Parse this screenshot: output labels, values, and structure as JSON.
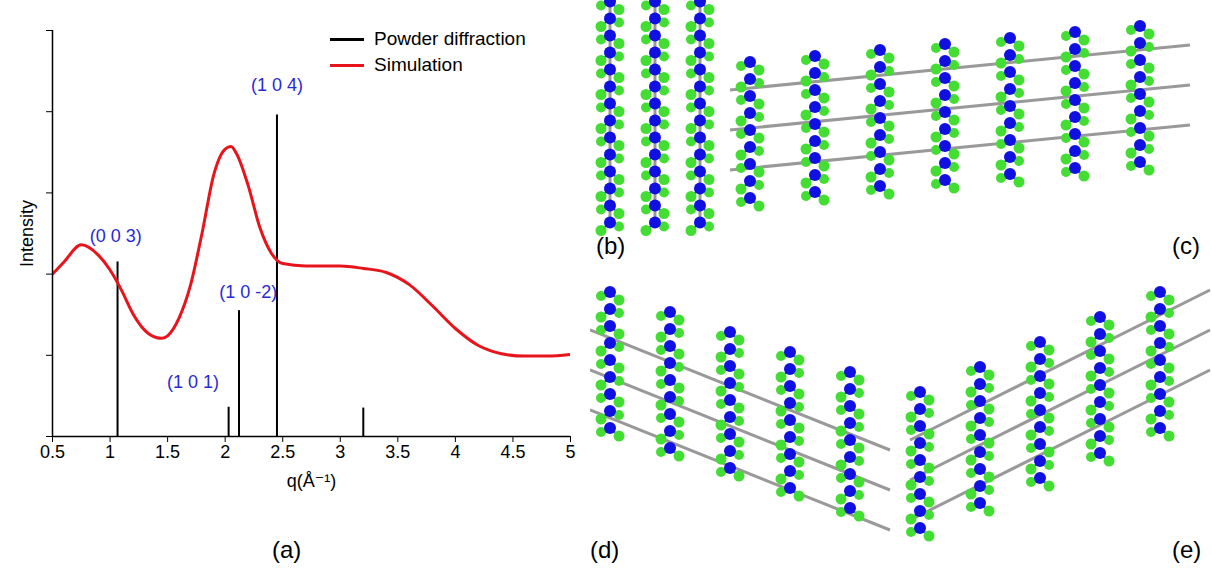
{
  "chart_data": {
    "type": "line",
    "x_label": "q(Å⁻¹)",
    "y_label": "Intensity",
    "xlim": [
      0.5,
      5
    ],
    "xticks": [
      0.5,
      1,
      1.5,
      2,
      2.5,
      3,
      3.5,
      4,
      4.5,
      5
    ],
    "ylim": [
      0,
      5
    ],
    "yticks": [
      0,
      1,
      2,
      3,
      4,
      5
    ],
    "tick_labels": "x",
    "grid": false,
    "legend": "top-right",
    "series": [
      {
        "name": "Powder diffraction",
        "color": "#000000",
        "type": "stem",
        "x": [
          1.065,
          2.03,
          2.12,
          2.45,
          3.2
        ],
        "values": [
          2.15,
          0.36,
          1.55,
          3.96,
          0.35
        ]
      },
      {
        "name": "Simulation",
        "color": "#e8141b",
        "type": "line",
        "x": [
          0.5,
          0.6,
          0.75,
          0.9,
          1.0,
          1.1,
          1.2,
          1.3,
          1.4,
          1.45,
          1.5,
          1.6,
          1.7,
          1.8,
          1.9,
          2.0,
          2.05,
          2.1,
          2.2,
          2.3,
          2.4,
          2.5,
          2.7,
          3.0,
          3.2,
          3.4,
          3.6,
          3.8,
          4.0,
          4.2,
          4.4,
          4.6,
          4.8,
          5.0
        ],
        "values": [
          2.0,
          2.15,
          2.36,
          2.23,
          2.05,
          1.8,
          1.51,
          1.31,
          1.22,
          1.21,
          1.24,
          1.46,
          1.87,
          2.51,
          3.22,
          3.54,
          3.57,
          3.48,
          3.09,
          2.58,
          2.26,
          2.13,
          2.1,
          2.1,
          2.07,
          2.02,
          1.87,
          1.61,
          1.33,
          1.12,
          1.02,
          0.99,
          0.99,
          1.01
        ]
      }
    ],
    "annotations": [
      {
        "text": "(0 0 3)",
        "x": 1.05,
        "y": 2.47,
        "color": "#2a2ad4"
      },
      {
        "text": "(1 0 -2)",
        "x": 2.2,
        "y": 1.78,
        "color": "#2a2ad4"
      },
      {
        "text": "(1 0 1)",
        "x": 1.72,
        "y": 0.67,
        "color": "#2a2ad4"
      },
      {
        "text": "(1 0 4)",
        "x": 2.45,
        "y": 4.33,
        "color": "#2a2ad4"
      }
    ]
  },
  "panels": [
    {
      "label": "(a)"
    },
    {
      "label": "(b)"
    },
    {
      "label": "(c)"
    },
    {
      "label": "(d)"
    },
    {
      "label": "(e)"
    }
  ]
}
